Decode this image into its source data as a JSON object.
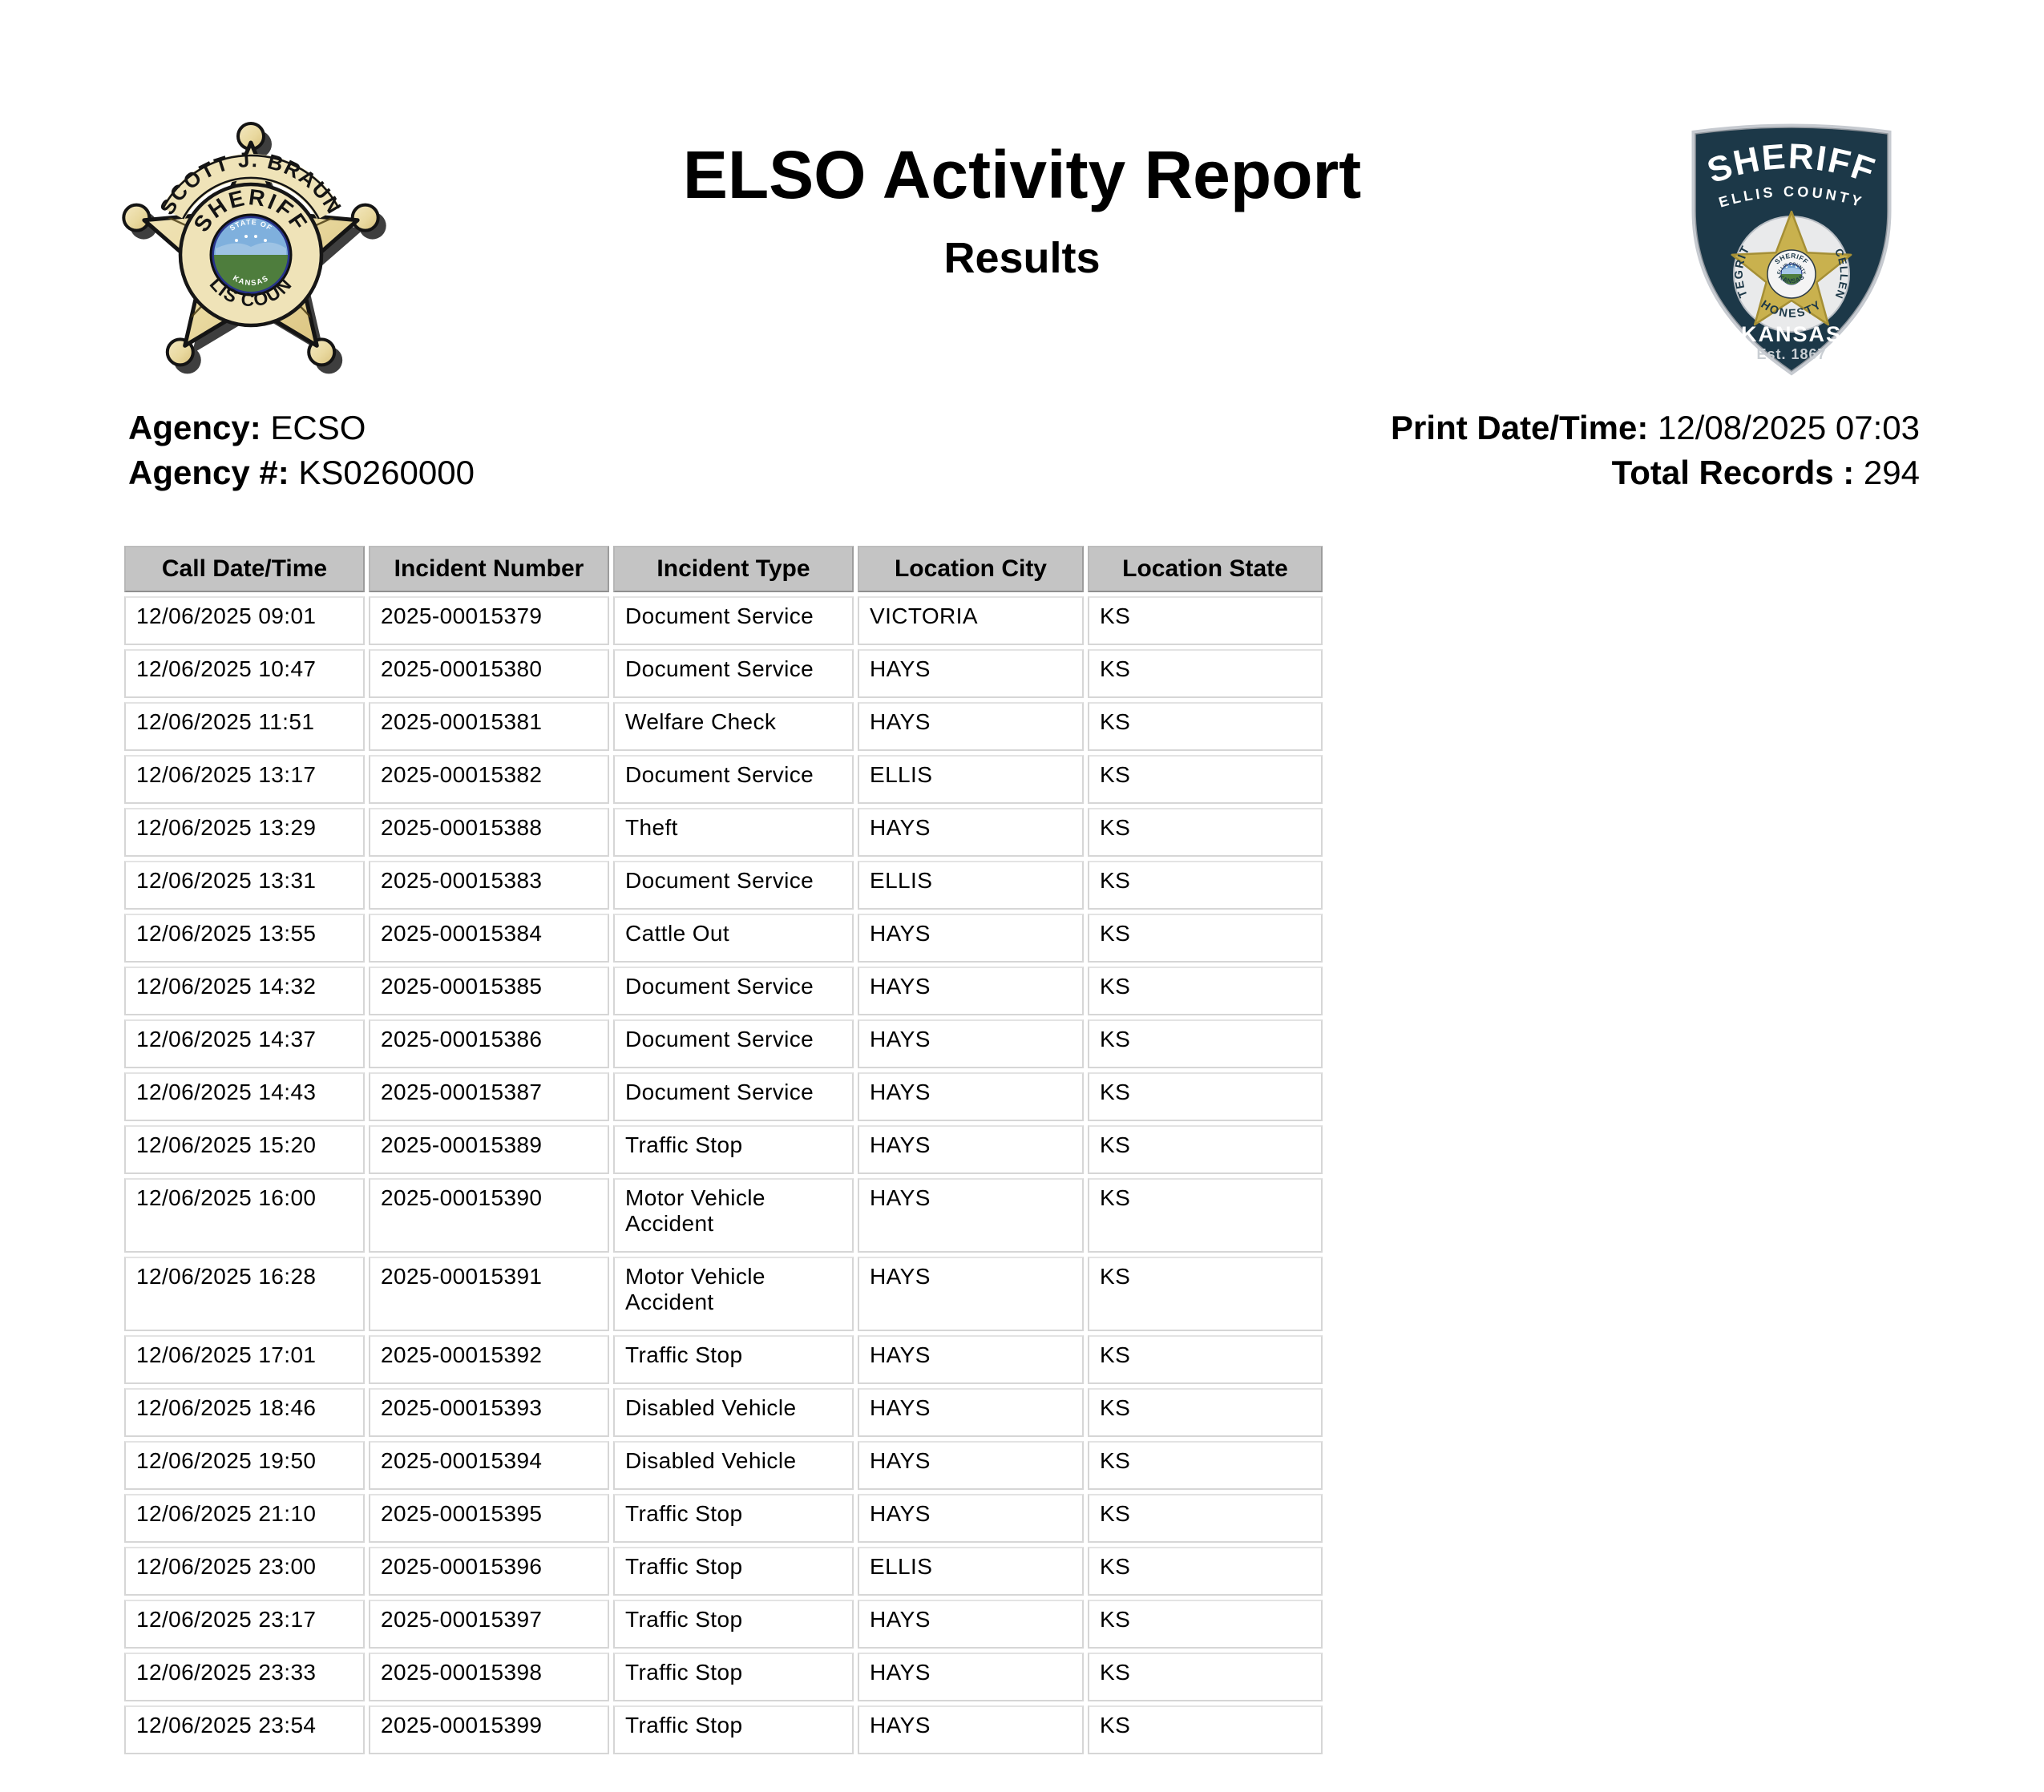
{
  "header": {
    "title": "ELSO Activity Report",
    "subtitle": "Results"
  },
  "meta": {
    "agency_label": "Agency:",
    "agency_value": "ECSO",
    "agency_number_label": "Agency #:",
    "agency_number_value": "KS0260000",
    "print_label": "Print Date/Time:",
    "print_value": "12/08/2025 07:03",
    "total_label": "Total Records :",
    "total_value": "294"
  },
  "left_badge": {
    "name_arc": "SCOTT J. BRAUN",
    "title_arc": "SHERIFF",
    "county_arc": "ELLIS COUNTY",
    "seal_top": "STATE OF",
    "seal_bottom": "KANSAS"
  },
  "right_badge": {
    "top_word": "SHERIFF",
    "subtitle": "ELLIS COUNTY",
    "left_word": "INTEGRITY",
    "bottom_word": "HONESTY",
    "right_word": "EXCELLENCE",
    "inner_top": "SHERIFF",
    "inner_mid": "ELLIS COUNTY",
    "inner_bottom": "KANSAS",
    "state": "KANSAS",
    "established": "Est. 1867"
  },
  "colors": {
    "table_header_bg": "#c4c4c4",
    "table_cell_border": "#d6d6d6",
    "shield_navy": "#1c3848",
    "shield_silver": "#c6cad0",
    "star_gold": "#c9b14e",
    "badge_cream": "#efe3b8",
    "seal_blue": "#27338c"
  },
  "table": {
    "columns": [
      "Call Date/Time",
      "Incident Number",
      "Incident Type",
      "Location City",
      "Location State"
    ],
    "rows": [
      [
        "12/06/2025 09:01",
        "2025-00015379",
        "Document Service",
        "VICTORIA",
        "KS"
      ],
      [
        "12/06/2025 10:47",
        "2025-00015380",
        "Document Service",
        "HAYS",
        "KS"
      ],
      [
        "12/06/2025 11:51",
        "2025-00015381",
        "Welfare Check",
        "HAYS",
        "KS"
      ],
      [
        "12/06/2025 13:17",
        "2025-00015382",
        "Document Service",
        "ELLIS",
        "KS"
      ],
      [
        "12/06/2025 13:29",
        "2025-00015388",
        "Theft",
        "HAYS",
        "KS"
      ],
      [
        "12/06/2025 13:31",
        "2025-00015383",
        "Document Service",
        "ELLIS",
        "KS"
      ],
      [
        "12/06/2025 13:55",
        "2025-00015384",
        "Cattle Out",
        "HAYS",
        "KS"
      ],
      [
        "12/06/2025 14:32",
        "2025-00015385",
        "Document Service",
        "HAYS",
        "KS"
      ],
      [
        "12/06/2025 14:37",
        "2025-00015386",
        "Document Service",
        "HAYS",
        "KS"
      ],
      [
        "12/06/2025 14:43",
        "2025-00015387",
        "Document Service",
        "HAYS",
        "KS"
      ],
      [
        "12/06/2025 15:20",
        "2025-00015389",
        "Traffic Stop",
        "HAYS",
        "KS"
      ],
      [
        "12/06/2025 16:00",
        "2025-00015390",
        "Motor Vehicle Accident",
        "HAYS",
        "KS"
      ],
      [
        "12/06/2025 16:28",
        "2025-00015391",
        "Motor Vehicle Accident",
        "HAYS",
        "KS"
      ],
      [
        "12/06/2025 17:01",
        "2025-00015392",
        "Traffic Stop",
        "HAYS",
        "KS"
      ],
      [
        "12/06/2025 18:46",
        "2025-00015393",
        "Disabled Vehicle",
        "HAYS",
        "KS"
      ],
      [
        "12/06/2025 19:50",
        "2025-00015394",
        "Disabled Vehicle",
        "HAYS",
        "KS"
      ],
      [
        "12/06/2025 21:10",
        "2025-00015395",
        "Traffic Stop",
        "HAYS",
        "KS"
      ],
      [
        "12/06/2025 23:00",
        "2025-00015396",
        "Traffic Stop",
        "ELLIS",
        "KS"
      ],
      [
        "12/06/2025 23:17",
        "2025-00015397",
        "Traffic Stop",
        "HAYS",
        "KS"
      ],
      [
        "12/06/2025 23:33",
        "2025-00015398",
        "Traffic Stop",
        "HAYS",
        "KS"
      ],
      [
        "12/06/2025 23:54",
        "2025-00015399",
        "Traffic Stop",
        "HAYS",
        "KS"
      ]
    ]
  }
}
